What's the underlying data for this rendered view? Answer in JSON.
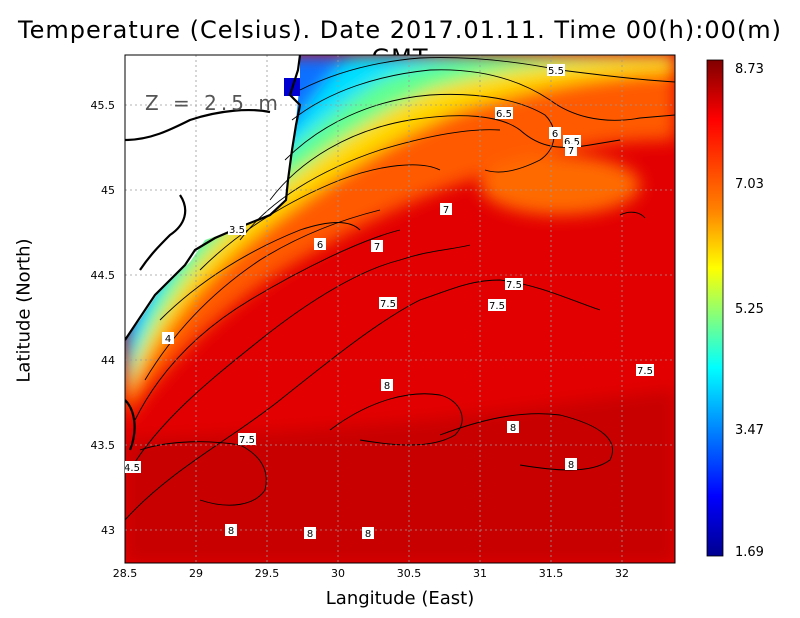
{
  "title": "Temperature (Celsius). Date 2017.01.11. Time 00(h):00(m) GMT",
  "depth_label": "Z = 2.5 m",
  "map": {
    "xlabel": "Langitude (East)",
    "ylabel": "Latitude (North)",
    "xlim": [
      28.5,
      32.4
    ],
    "ylim": [
      42.8,
      45.8
    ],
    "x_ticks": [
      "28.5",
      "29",
      "29.5",
      "30",
      "30.5",
      "31",
      "31.5",
      "32"
    ],
    "y_ticks": [
      "43",
      "43.5",
      "44",
      "44.5",
      "45",
      "45.5"
    ],
    "grid": true
  },
  "colorbar": {
    "ticks": [
      "8.73",
      "7.03",
      "5.25",
      "3.47",
      "1.69"
    ],
    "min": 1.69,
    "max": 8.73,
    "colors": [
      "#00008f",
      "#0000ff",
      "#0080ff",
      "#00ffff",
      "#80ff80",
      "#ffff00",
      "#ff8000",
      "#ff0000",
      "#800000"
    ]
  },
  "contour_labels": [
    "5.5",
    "6.5",
    "6",
    "6.5",
    "7",
    "7",
    "3.5",
    "6",
    "7",
    "7.5",
    "7.5",
    "7.5",
    "4",
    "7.5",
    "8",
    "8",
    "7.5",
    "8",
    "4.5",
    "8",
    "8",
    "8"
  ],
  "chart_data": {
    "type": "heatmap",
    "title": "Temperature (Celsius). Date 2017.01.11. Time 00(h):00(m) GMT",
    "xlabel": "Langitude (East)",
    "ylabel": "Latitude (North)",
    "xlim": [
      28.5,
      32.4
    ],
    "ylim": [
      42.8,
      45.8
    ],
    "color_range": [
      1.69,
      8.73
    ],
    "contour_levels": [
      3.5,
      4,
      4.5,
      5.5,
      6,
      6.5,
      7,
      7.5,
      8
    ],
    "legend": "colorbar right"
  }
}
